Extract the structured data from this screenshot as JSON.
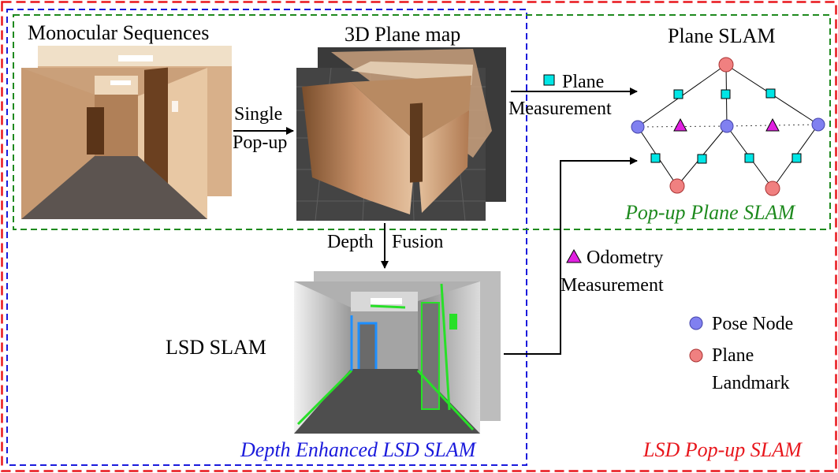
{
  "labels": {
    "monocular_sequences": "Monocular Sequences",
    "plane_map_3d": "3D Plane map",
    "plane_slam": "Plane SLAM",
    "single": "Single",
    "pop_up": "Pop-up",
    "plane": "Plane",
    "measurement": "Measurement",
    "depth": "Depth",
    "fusion": "Fusion",
    "odometry": "Odometry",
    "odometry_measurement": "Measurement",
    "lsd_slam": "LSD SLAM",
    "pose_node": "Pose Node",
    "plane_line1": "Plane",
    "plane_line2": "Landmark"
  },
  "regions": {
    "popup_plane_slam": "Pop-up Plane SLAM",
    "depth_enhanced_lsd_slam": "Depth Enhanced LSD SLAM",
    "lsd_popup_slam": "LSD Pop-up SLAM"
  },
  "colors": {
    "red_region": "#e8161c",
    "blue_region": "#1a1adc",
    "green_region": "#1e8a1e",
    "pose_node": "#8080f0",
    "plane_landmark": "#f08080",
    "plane_measurement": "#00e6e6",
    "odometry_measurement": "#e020e0"
  }
}
